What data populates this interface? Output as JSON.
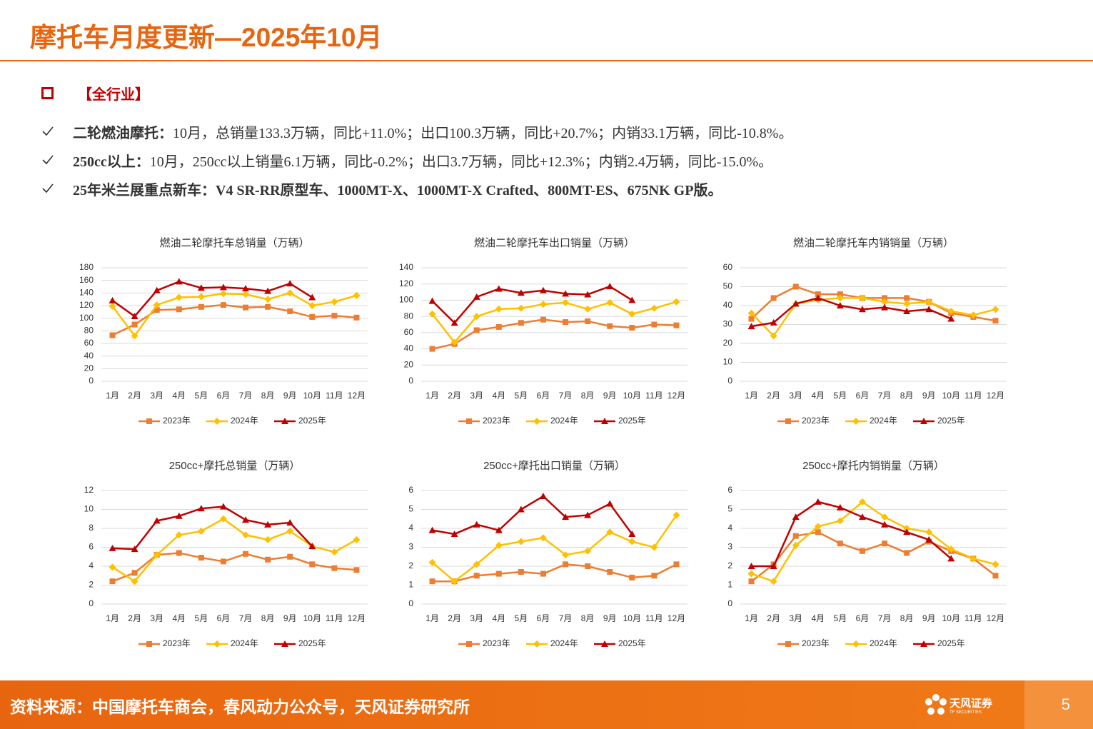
{
  "header": {
    "title": "摩托车月度更新—2025年10月"
  },
  "section": {
    "heading": "【全行业】"
  },
  "bullets": [
    {
      "label": "二轮燃油摩托：",
      "text": "10月，总销量133.3万辆，同比+11.0%；出口100.3万辆，同比+20.7%；内销33.1万辆，同比-10.8%。"
    },
    {
      "label": "250cc以上：",
      "text": "10月，250cc以上销量6.1万辆，同比-0.2%；出口3.7万辆，同比+12.3%；内销2.4万辆，同比-15.0%。"
    },
    {
      "label": "25年米兰展重点新车：",
      "text": "V4 SR-RR原型车、1000MT-X、1000MT-X Crafted、800MT-ES、675NK GP版。"
    }
  ],
  "chart_data": [
    {
      "type": "line",
      "title": "燃油二轮摩托车总销量（万辆）",
      "categories": [
        "1月",
        "2月",
        "3月",
        "4月",
        "5月",
        "6月",
        "7月",
        "8月",
        "9月",
        "10月",
        "11月",
        "12月"
      ],
      "ylim": [
        0,
        180
      ],
      "yticks": [
        0,
        20,
        40,
        60,
        80,
        100,
        120,
        140,
        160,
        180
      ],
      "grid": true,
      "series": [
        {
          "name": "2023年",
          "color": "#ED7D31",
          "marker": "square",
          "values": [
            73,
            90,
            113,
            114,
            118,
            121,
            117,
            118,
            111,
            102,
            104,
            101
          ]
        },
        {
          "name": "2024年",
          "color": "#FFC000",
          "marker": "diamond",
          "values": [
            119,
            72,
            121,
            133,
            134,
            139,
            138,
            130,
            140,
            120,
            126,
            136
          ]
        },
        {
          "name": "2025年",
          "color": "#C00000",
          "marker": "triangle",
          "values": [
            128,
            103,
            144,
            158,
            148,
            149,
            147,
            143,
            155,
            133,
            null,
            null
          ]
        }
      ]
    },
    {
      "type": "line",
      "title": "燃油二轮摩托车出口销量（万辆）",
      "categories": [
        "1月",
        "2月",
        "3月",
        "4月",
        "5月",
        "6月",
        "7月",
        "8月",
        "9月",
        "10月",
        "11月",
        "12月"
      ],
      "ylim": [
        0,
        140
      ],
      "yticks": [
        0,
        20,
        40,
        60,
        80,
        100,
        120,
        140
      ],
      "grid": true,
      "series": [
        {
          "name": "2023年",
          "color": "#ED7D31",
          "marker": "square",
          "values": [
            40,
            46,
            63,
            67,
            72,
            76,
            73,
            74,
            68,
            66,
            70,
            69
          ]
        },
        {
          "name": "2024年",
          "color": "#FFC000",
          "marker": "diamond",
          "values": [
            83,
            48,
            80,
            89,
            90,
            95,
            97,
            89,
            97,
            83,
            90,
            98
          ]
        },
        {
          "name": "2025年",
          "color": "#C00000",
          "marker": "triangle",
          "values": [
            99,
            72,
            104,
            114,
            109,
            112,
            108,
            107,
            117,
            100,
            null,
            null
          ]
        }
      ]
    },
    {
      "type": "line",
      "title": "燃油二轮摩托车内销销量（万辆）",
      "categories": [
        "1月",
        "2月",
        "3月",
        "4月",
        "5月",
        "6月",
        "7月",
        "8月",
        "9月",
        "10月",
        "11月",
        "12月"
      ],
      "ylim": [
        0,
        60
      ],
      "yticks": [
        0,
        10,
        20,
        30,
        40,
        50,
        60
      ],
      "grid": true,
      "series": [
        {
          "name": "2023年",
          "color": "#ED7D31",
          "marker": "square",
          "values": [
            33,
            44,
            50,
            46,
            46,
            44,
            44,
            44,
            42,
            36,
            34,
            32
          ]
        },
        {
          "name": "2024年",
          "color": "#FFC000",
          "marker": "diamond",
          "values": [
            36,
            24,
            41,
            43,
            44,
            44,
            42,
            41,
            42,
            37,
            35,
            38
          ]
        },
        {
          "name": "2025年",
          "color": "#C00000",
          "marker": "triangle",
          "values": [
            29,
            31,
            41,
            44,
            40,
            38,
            39,
            37,
            38,
            33,
            null,
            null
          ]
        }
      ]
    },
    {
      "type": "line",
      "title": "250cc+摩托总销量（万辆）",
      "categories": [
        "1月",
        "2月",
        "3月",
        "4月",
        "5月",
        "6月",
        "7月",
        "8月",
        "9月",
        "10月",
        "11月",
        "12月"
      ],
      "ylim": [
        0,
        12
      ],
      "yticks": [
        0,
        2,
        4,
        6,
        8,
        10,
        12
      ],
      "grid": true,
      "series": [
        {
          "name": "2023年",
          "color": "#ED7D31",
          "marker": "square",
          "values": [
            2.4,
            3.3,
            5.2,
            5.4,
            4.9,
            4.5,
            5.3,
            4.7,
            5.0,
            4.2,
            3.8,
            3.6
          ]
        },
        {
          "name": "2024年",
          "color": "#FFC000",
          "marker": "diamond",
          "values": [
            3.9,
            2.4,
            5.2,
            7.3,
            7.7,
            9.0,
            7.3,
            6.8,
            7.7,
            6.1,
            5.5,
            6.8
          ]
        },
        {
          "name": "2025年",
          "color": "#C00000",
          "marker": "triangle",
          "values": [
            5.9,
            5.8,
            8.8,
            9.3,
            10.1,
            10.3,
            8.9,
            8.4,
            8.6,
            6.1,
            null,
            null
          ]
        }
      ]
    },
    {
      "type": "line",
      "title": "250cc+摩托出口销量（万辆）",
      "categories": [
        "1月",
        "2月",
        "3月",
        "4月",
        "5月",
        "6月",
        "7月",
        "8月",
        "9月",
        "10月",
        "11月",
        "12月"
      ],
      "ylim": [
        0,
        6
      ],
      "yticks": [
        0,
        1,
        2,
        3,
        4,
        5,
        6
      ],
      "grid": true,
      "series": [
        {
          "name": "2023年",
          "color": "#ED7D31",
          "marker": "square",
          "values": [
            1.2,
            1.2,
            1.5,
            1.6,
            1.7,
            1.6,
            2.1,
            2.0,
            1.7,
            1.4,
            1.5,
            2.1
          ]
        },
        {
          "name": "2024年",
          "color": "#FFC000",
          "marker": "diamond",
          "values": [
            2.2,
            1.2,
            2.1,
            3.1,
            3.3,
            3.5,
            2.6,
            2.8,
            3.8,
            3.3,
            3.0,
            4.7
          ]
        },
        {
          "name": "2025年",
          "color": "#C00000",
          "marker": "triangle",
          "values": [
            3.9,
            3.7,
            4.2,
            3.9,
            5.0,
            5.7,
            4.6,
            4.7,
            5.3,
            3.7,
            null,
            null
          ]
        }
      ]
    },
    {
      "type": "line",
      "title": "250cc+摩托内销销量（万辆）",
      "categories": [
        "1月",
        "2月",
        "3月",
        "4月",
        "5月",
        "6月",
        "7月",
        "8月",
        "9月",
        "10月",
        "11月",
        "12月"
      ],
      "ylim": [
        0,
        6
      ],
      "yticks": [
        0,
        1,
        2,
        3,
        4,
        5,
        6
      ],
      "grid": true,
      "series": [
        {
          "name": "2023年",
          "color": "#ED7D31",
          "marker": "square",
          "values": [
            1.2,
            2.1,
            3.6,
            3.8,
            3.2,
            2.8,
            3.2,
            2.7,
            3.3,
            2.8,
            2.4,
            1.5
          ]
        },
        {
          "name": "2024年",
          "color": "#FFC000",
          "marker": "diamond",
          "values": [
            1.6,
            1.2,
            3.1,
            4.1,
            4.4,
            5.4,
            4.6,
            4.0,
            3.8,
            2.9,
            2.4,
            2.1
          ]
        },
        {
          "name": "2025年",
          "color": "#C00000",
          "marker": "triangle",
          "values": [
            2.0,
            2.0,
            4.6,
            5.4,
            5.1,
            4.6,
            4.2,
            3.8,
            3.4,
            2.4,
            null,
            null
          ]
        }
      ]
    }
  ],
  "footer": {
    "source": "资料来源：中国摩托车商会，春风动力公众号，天风证券研究所",
    "logo": "天风证券",
    "logo_sub": "TF SECURITIES",
    "page": "5"
  }
}
